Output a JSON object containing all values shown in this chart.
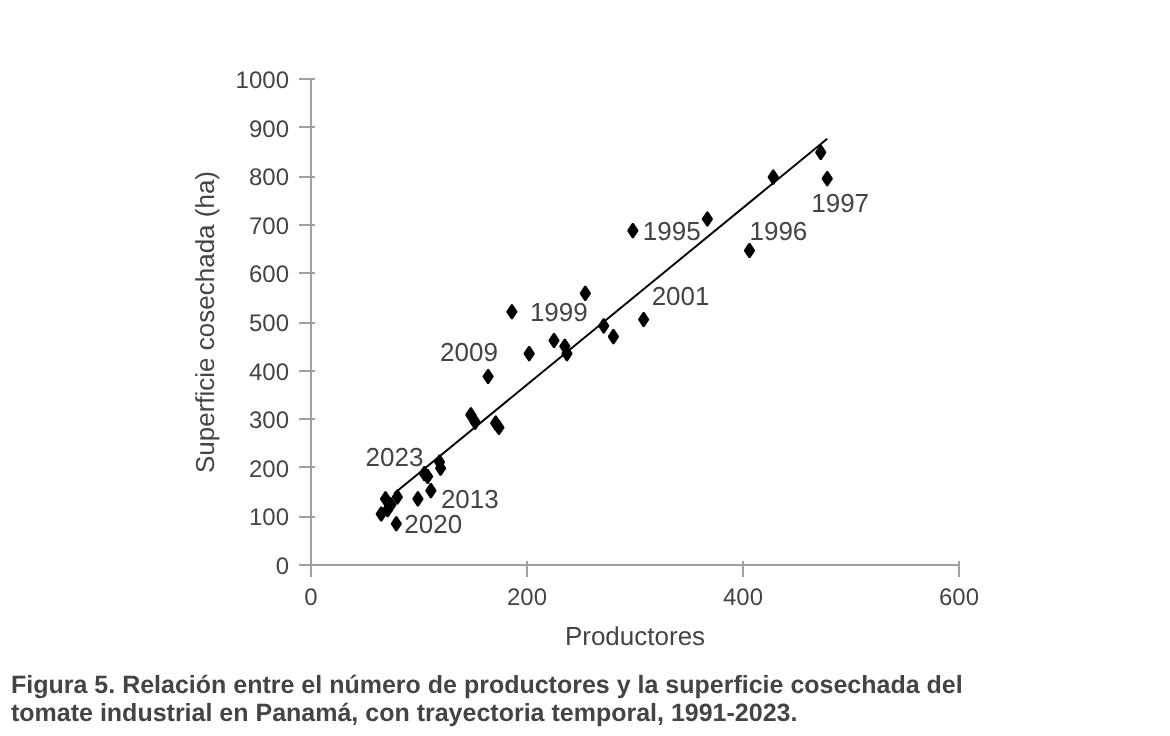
{
  "chart_data": {
    "type": "scatter",
    "xlabel": "Productores",
    "ylabel": "Superficie cosechada (ha)",
    "xlim": [
      0,
      600
    ],
    "xticks": [
      0,
      200,
      400,
      600
    ],
    "ylim": [
      0,
      1000
    ],
    "yticks": [
      0,
      100,
      200,
      300,
      400,
      500,
      600,
      700,
      800,
      900,
      1000
    ],
    "grid": false,
    "marker": "diamond",
    "series": [
      {
        "color": "#000000",
        "x": [
          65,
          69,
          71,
          74,
          80,
          79,
          99,
          111,
          105,
          108,
          119,
          120,
          148,
          152,
          171,
          174,
          164,
          186,
          202,
          225,
          235,
          237,
          254,
          271,
          280,
          308,
          298,
          367,
          406,
          428,
          472,
          478
        ],
        "values": [
          105,
          136,
          114,
          124,
          140,
          85,
          136,
          153,
          188,
          182,
          212,
          199,
          309,
          294,
          292,
          283,
          388,
          521,
          435,
          462,
          450,
          435,
          559,
          492,
          470,
          505,
          688,
          712,
          647,
          798,
          849,
          795
        ]
      },
      {
        "type": "line",
        "color": "#000000",
        "x": [
          77,
          478
        ],
        "values": [
          147,
          877
        ],
        "marker": "none"
      }
    ],
    "annotations": [
      {
        "text": "2023",
        "x": 69,
        "y": 136
      },
      {
        "text": "2020",
        "x": 79,
        "y": 85
      },
      {
        "text": "2013",
        "x": 111,
        "y": 153
      },
      {
        "text": "2009",
        "x": 164,
        "y": 388
      },
      {
        "text": "1999",
        "x": 186,
        "y": 521
      },
      {
        "text": "2001",
        "x": 308,
        "y": 505
      },
      {
        "text": "1995",
        "x": 298,
        "y": 688
      },
      {
        "text": "1996",
        "x": 406,
        "y": 647
      },
      {
        "text": "1997",
        "x": 478,
        "y": 795
      },
      "Figura 5. Relación entre el número de productores y la superficie cosechada del tomate industrial en Panamá, con trayectoria temporal, 1991-2023."
    ]
  }
}
